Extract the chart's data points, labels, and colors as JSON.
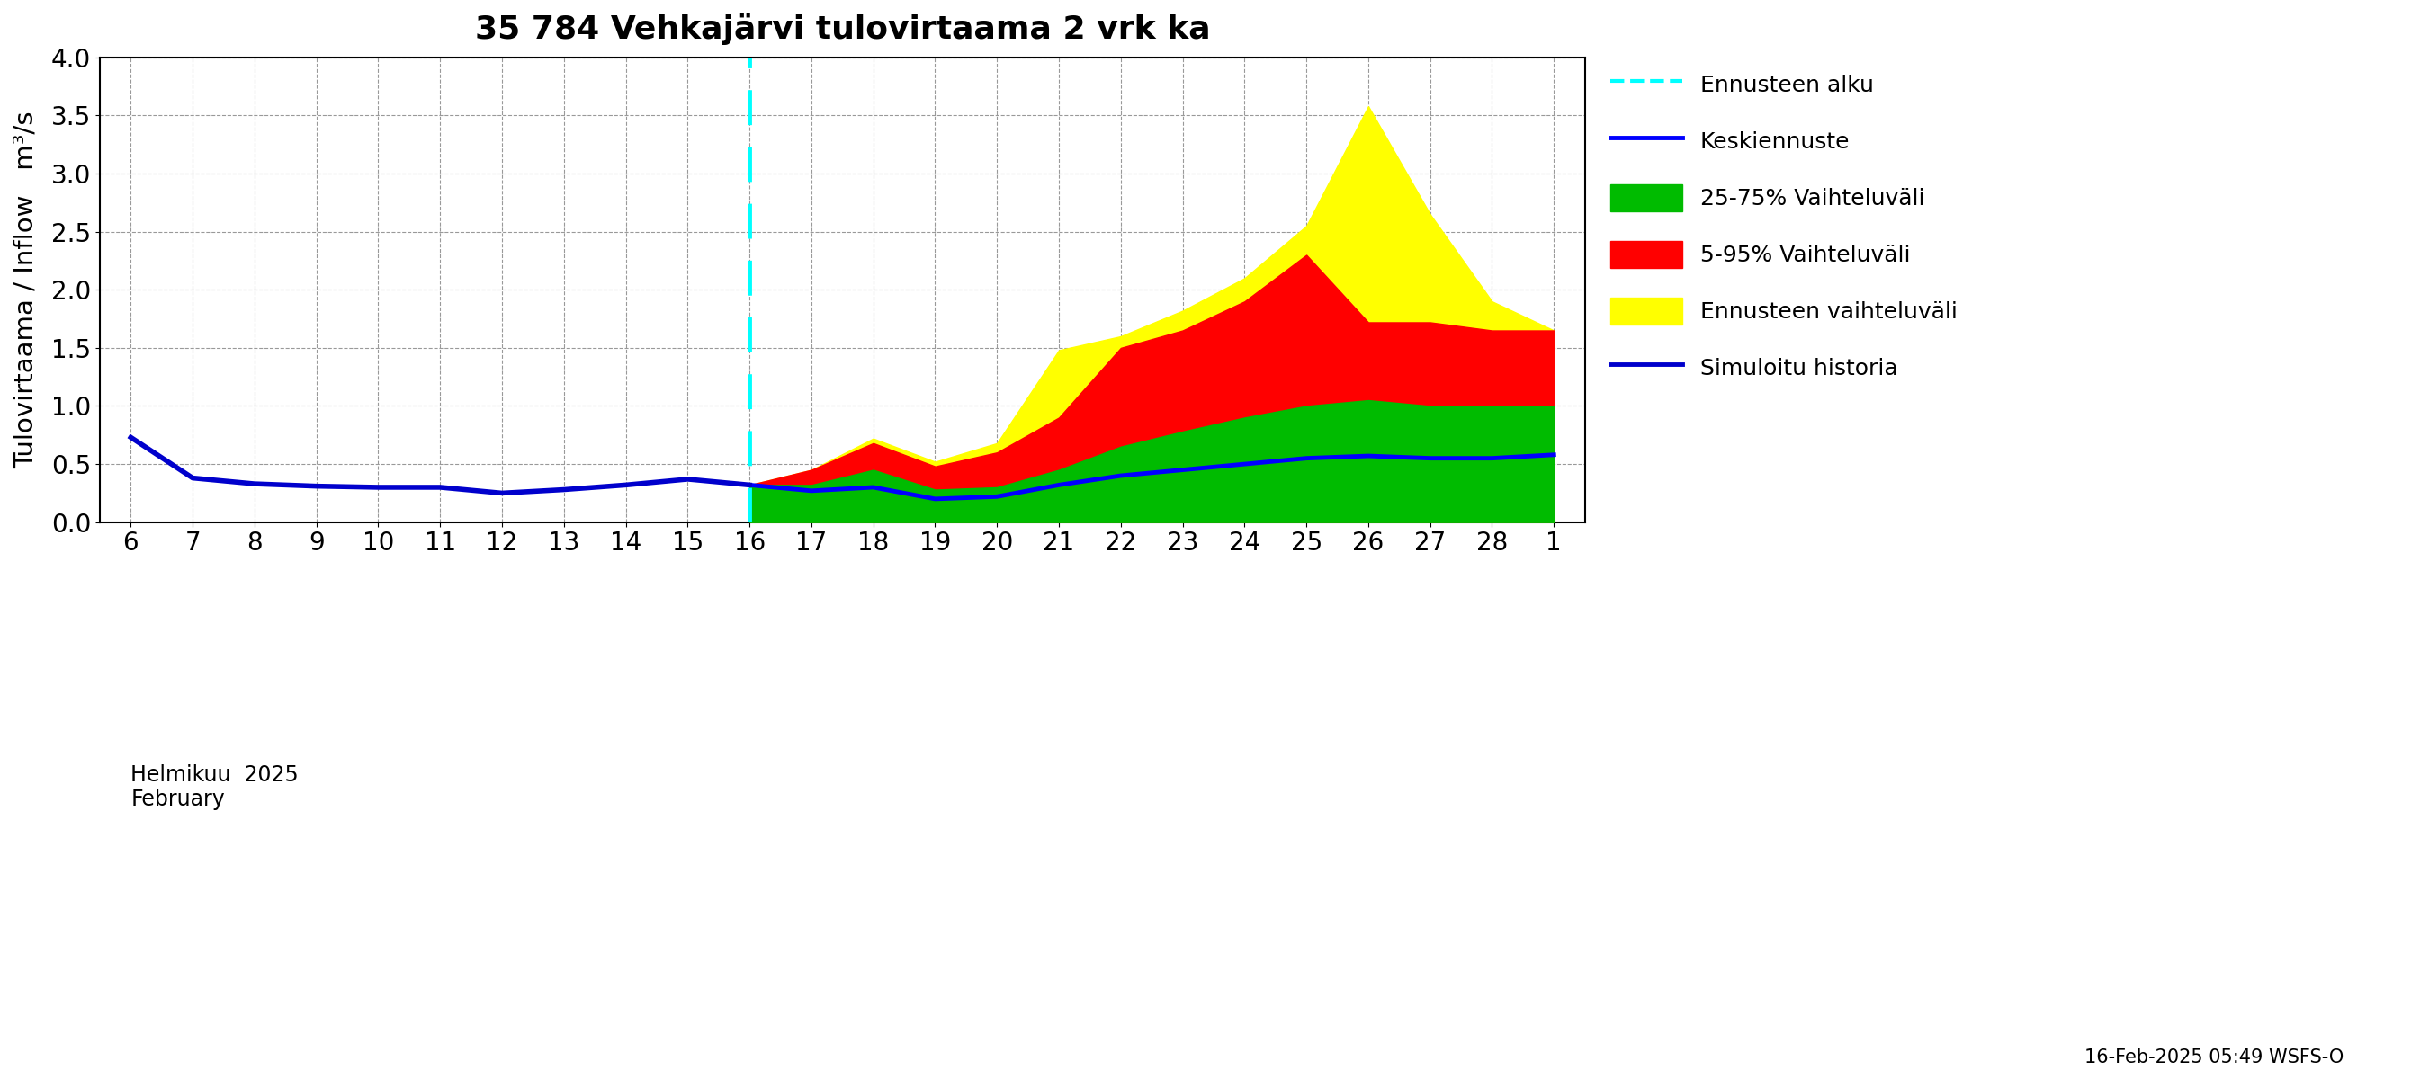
{
  "title": "35 784 Vehkajärvi tulovirtaama 2 vrk ka",
  "ylabel": "Tulovirtaama / Inflow   m³/s",
  "footnote": "16-Feb-2025 05:49 WSFS-O",
  "ylim": [
    0.0,
    4.0
  ],
  "yticks": [
    0.0,
    0.5,
    1.0,
    1.5,
    2.0,
    2.5,
    3.0,
    3.5,
    4.0
  ],
  "history_x": [
    6,
    7,
    8,
    9,
    10,
    11,
    12,
    13,
    14,
    15,
    16
  ],
  "history_y": [
    0.73,
    0.38,
    0.33,
    0.31,
    0.3,
    0.3,
    0.25,
    0.28,
    0.32,
    0.37,
    0.32
  ],
  "forecast_x": [
    16,
    17,
    18,
    19,
    20,
    21,
    22,
    23,
    24,
    25,
    26,
    27,
    28,
    29
  ],
  "median_y": [
    0.32,
    0.27,
    0.3,
    0.2,
    0.22,
    0.32,
    0.4,
    0.45,
    0.5,
    0.55,
    0.57,
    0.55,
    0.55,
    0.58
  ],
  "p75_y": [
    0.32,
    0.32,
    0.45,
    0.28,
    0.3,
    0.45,
    0.65,
    0.78,
    0.9,
    1.0,
    1.05,
    1.0,
    1.0,
    1.0
  ],
  "p95_y": [
    0.32,
    0.45,
    0.68,
    0.48,
    0.6,
    0.9,
    1.5,
    1.65,
    1.9,
    2.3,
    1.72,
    1.72,
    1.65,
    1.65
  ],
  "ens_max_y": [
    0.32,
    0.45,
    0.72,
    0.52,
    0.68,
    1.48,
    1.6,
    1.82,
    2.1,
    2.55,
    3.58,
    2.65,
    1.9,
    1.65
  ],
  "color_yellow": "#FFFF00",
  "color_red": "#FF0000",
  "color_green": "#00BB00",
  "color_blue": "#0000FF",
  "color_cyan": "#00FFFF",
  "color_hist": "#0000CC",
  "legend_entries": [
    "Ennusteen alku",
    "Keskiennuste",
    "25-75% Vaihteluväli",
    "5-95% Vaihteluväli",
    "Ennusteen vaihteluväli",
    "Simuloitu historia"
  ],
  "x_tick_labels": [
    "6",
    "7",
    "8",
    "9",
    "10",
    "11",
    "12",
    "13",
    "14",
    "15",
    "16",
    "17",
    "18",
    "19",
    "20",
    "21",
    "22",
    "23",
    "24",
    "25",
    "26",
    "27",
    "28",
    "1"
  ],
  "x_tick_positions": [
    6,
    7,
    8,
    9,
    10,
    11,
    12,
    13,
    14,
    15,
    16,
    17,
    18,
    19,
    20,
    21,
    22,
    23,
    24,
    25,
    26,
    27,
    28,
    29
  ]
}
